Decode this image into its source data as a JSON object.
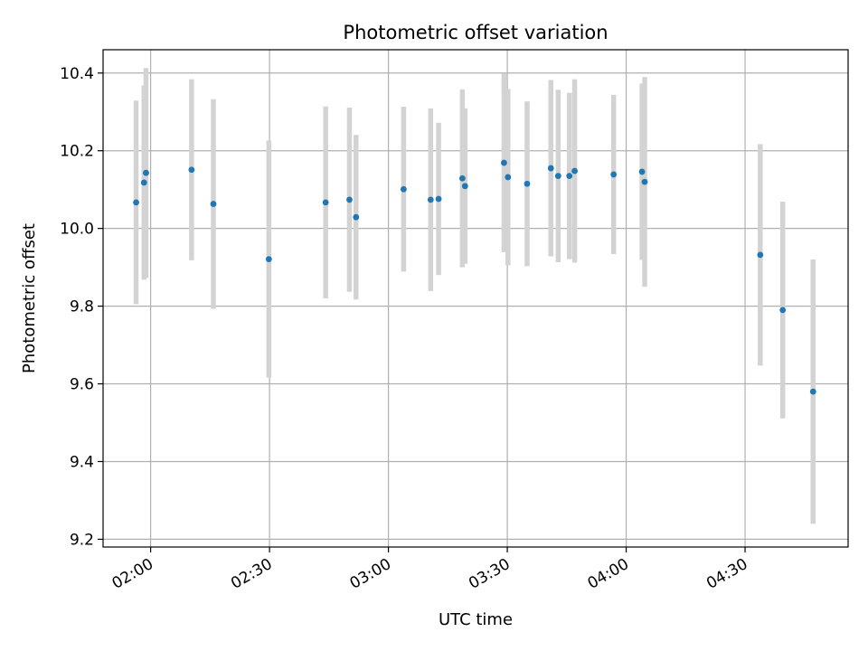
{
  "chart_data": {
    "type": "scatter",
    "title": "Photometric offset variation",
    "xlabel": "UTC time",
    "ylabel": "Photometric offset",
    "xlim": [
      "01:48",
      "04:56"
    ],
    "ylim": [
      9.18,
      10.46
    ],
    "grid": true,
    "x_ticks": [
      "02:00",
      "02:30",
      "03:00",
      "03:30",
      "04:00",
      "04:30"
    ],
    "y_ticks": [
      "9.2",
      "9.4",
      "9.6",
      "9.8",
      "10.0",
      "10.2",
      "10.4"
    ],
    "colors": {
      "point": "#1f77b4",
      "error_bar": "#d3d3d3",
      "grid": "#b0b0b0"
    },
    "points": [
      {
        "x": "01:56:20",
        "y": 10.067,
        "err": 0.262
      },
      {
        "x": "01:58:20",
        "y": 10.118,
        "err": 0.25
      },
      {
        "x": "01:58:50",
        "y": 10.143,
        "err": 0.27
      },
      {
        "x": "02:10:20",
        "y": 10.151,
        "err": 0.233
      },
      {
        "x": "02:15:50",
        "y": 10.063,
        "err": 0.27
      },
      {
        "x": "02:29:50",
        "y": 9.921,
        "err": 0.305
      },
      {
        "x": "02:44:10",
        "y": 10.067,
        "err": 0.247
      },
      {
        "x": "02:50:10",
        "y": 10.074,
        "err": 0.237
      },
      {
        "x": "02:51:50",
        "y": 10.029,
        "err": 0.212
      },
      {
        "x": "03:03:50",
        "y": 10.101,
        "err": 0.212
      },
      {
        "x": "03:10:40",
        "y": 10.074,
        "err": 0.235
      },
      {
        "x": "03:12:40",
        "y": 10.076,
        "err": 0.196
      },
      {
        "x": "03:18:40",
        "y": 10.129,
        "err": 0.229
      },
      {
        "x": "03:19:20",
        "y": 10.109,
        "err": 0.2
      },
      {
        "x": "03:29:10",
        "y": 10.169,
        "err": 0.23
      },
      {
        "x": "03:30:10",
        "y": 10.132,
        "err": 0.227
      },
      {
        "x": "03:35:00",
        "y": 10.115,
        "err": 0.212
      },
      {
        "x": "03:41:00",
        "y": 10.155,
        "err": 0.227
      },
      {
        "x": "03:42:50",
        "y": 10.135,
        "err": 0.222
      },
      {
        "x": "03:45:40",
        "y": 10.135,
        "err": 0.214
      },
      {
        "x": "03:47:00",
        "y": 10.148,
        "err": 0.236
      },
      {
        "x": "03:56:50",
        "y": 10.139,
        "err": 0.205
      },
      {
        "x": "04:04:00",
        "y": 10.146,
        "err": 0.227
      },
      {
        "x": "04:04:40",
        "y": 10.12,
        "err": 0.27
      },
      {
        "x": "04:33:50",
        "y": 9.932,
        "err": 0.285
      },
      {
        "x": "04:39:30",
        "y": 9.79,
        "err": 0.279
      },
      {
        "x": "04:47:10",
        "y": 9.58,
        "err": 0.34
      }
    ]
  }
}
